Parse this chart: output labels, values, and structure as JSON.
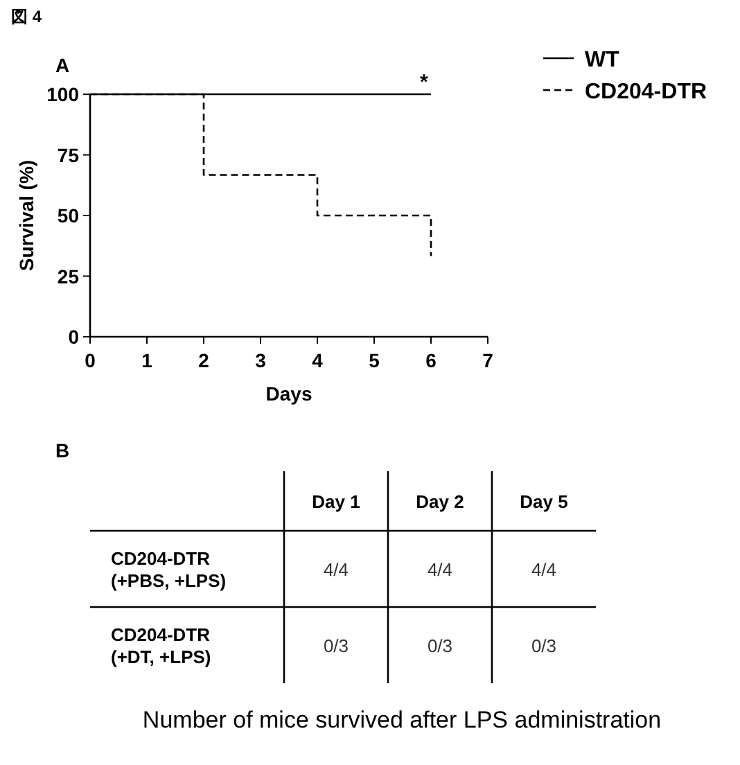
{
  "chart_data": [
    {
      "type": "step",
      "title": "A",
      "xlabel": "Days",
      "ylabel": "Survival (%)",
      "x": [
        0,
        2,
        4,
        6
      ],
      "series": [
        {
          "name": "WT",
          "color": "#000000",
          "line_style": "solid",
          "values": [
            100,
            100,
            100,
            100
          ]
        },
        {
          "name": "CD204-DTR",
          "color": "#000000",
          "line_style": "dashed",
          "values": [
            100,
            66.7,
            50,
            33.3
          ]
        }
      ],
      "xlim": [
        0,
        7
      ],
      "xticks": [
        0,
        1,
        2,
        3,
        4,
        5,
        6,
        7
      ],
      "ylim": [
        0,
        100
      ],
      "yticks": [
        0,
        25,
        50,
        75,
        100
      ],
      "grid": false,
      "legend": "top right",
      "annotations": [
        "図 4",
        {
          "text": "*",
          "x": 6,
          "y": 100
        }
      ]
    },
    {
      "type": "other",
      "title": "B",
      "categories": [
        "Day 1",
        "Day 2",
        "Day 5"
      ],
      "y_categories": [
        "CD204-DTR\n(+PBS, +LPS)",
        "CD204-DTR\n(+DT, +LPS)"
      ],
      "cell_labels": [
        [
          "4/4",
          "4/4",
          "4/4"
        ],
        [
          "0/3",
          "0/3",
          "0/3"
        ]
      ],
      "annotations": [
        "Number of mice survived after LPS administration"
      ]
    }
  ]
}
